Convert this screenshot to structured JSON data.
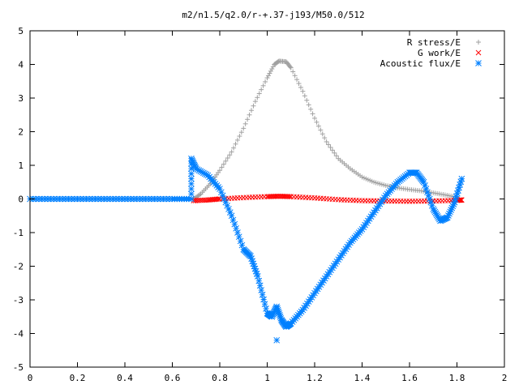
{
  "chart_data": {
    "type": "scatter",
    "title": "m2/n1.5/q2.0/r-+.37-j193/M50.0/512",
    "xlabel": "",
    "ylabel": "",
    "xlim": [
      0,
      2
    ],
    "ylim": [
      -5,
      5
    ],
    "x_ticks": [
      "0",
      "0.2",
      "0.4",
      "0.6",
      "0.8",
      "1",
      "1.2",
      "1.4",
      "1.6",
      "1.8",
      "2"
    ],
    "y_ticks": [
      "5",
      "4",
      "3",
      "2",
      "1",
      "0",
      "-1",
      "-2",
      "-3",
      "-4",
      "-5"
    ],
    "grid": false,
    "legend_position": "top-right",
    "series": [
      {
        "name": "R stress/E",
        "marker": "+",
        "color": "#a0a0a0",
        "points": [
          [
            0.69,
            0.0
          ],
          [
            0.72,
            0.15
          ],
          [
            0.76,
            0.45
          ],
          [
            0.8,
            0.85
          ],
          [
            0.85,
            1.4
          ],
          [
            0.9,
            2.1
          ],
          [
            0.95,
            2.9
          ],
          [
            1.0,
            3.6
          ],
          [
            1.03,
            4.0
          ],
          [
            1.05,
            4.1
          ],
          [
            1.08,
            4.08
          ],
          [
            1.1,
            3.9
          ],
          [
            1.15,
            3.2
          ],
          [
            1.2,
            2.4
          ],
          [
            1.25,
            1.7
          ],
          [
            1.3,
            1.2
          ],
          [
            1.35,
            0.9
          ],
          [
            1.4,
            0.65
          ],
          [
            1.45,
            0.5
          ],
          [
            1.5,
            0.4
          ],
          [
            1.55,
            0.33
          ],
          [
            1.6,
            0.28
          ],
          [
            1.65,
            0.24
          ],
          [
            1.7,
            0.18
          ],
          [
            1.75,
            0.12
          ],
          [
            1.8,
            0.05
          ]
        ]
      },
      {
        "name": "G work/E",
        "marker": "x",
        "color": "#ff0000",
        "points": [
          [
            0.69,
            -0.05
          ],
          [
            0.75,
            -0.03
          ],
          [
            0.8,
            0.0
          ],
          [
            0.9,
            0.04
          ],
          [
            1.0,
            0.07
          ],
          [
            1.05,
            0.08
          ],
          [
            1.1,
            0.07
          ],
          [
            1.2,
            0.03
          ],
          [
            1.3,
            -0.02
          ],
          [
            1.4,
            -0.05
          ],
          [
            1.5,
            -0.06
          ],
          [
            1.6,
            -0.07
          ],
          [
            1.7,
            -0.06
          ],
          [
            1.8,
            -0.04
          ],
          [
            1.82,
            -0.03
          ]
        ]
      },
      {
        "name": "Acoustic flux/E",
        "marker": "*",
        "color": "#0080ff",
        "points": [
          [
            0.0,
            0.0
          ],
          [
            0.1,
            0.0
          ],
          [
            0.2,
            0.0
          ],
          [
            0.3,
            0.0
          ],
          [
            0.4,
            0.0
          ],
          [
            0.5,
            0.0
          ],
          [
            0.6,
            0.0
          ],
          [
            0.68,
            0.0
          ],
          [
            0.68,
            1.2
          ],
          [
            0.7,
            0.9
          ],
          [
            0.75,
            0.7
          ],
          [
            0.8,
            0.3
          ],
          [
            0.85,
            -0.5
          ],
          [
            0.9,
            -1.5
          ],
          [
            0.93,
            -1.7
          ],
          [
            0.96,
            -2.3
          ],
          [
            1.0,
            -3.4
          ],
          [
            1.02,
            -3.5
          ],
          [
            1.04,
            -3.2
          ],
          [
            1.06,
            -3.6
          ],
          [
            1.08,
            -3.8
          ],
          [
            1.1,
            -3.7
          ],
          [
            1.15,
            -3.3
          ],
          [
            1.2,
            -2.8
          ],
          [
            1.25,
            -2.3
          ],
          [
            1.3,
            -1.8
          ],
          [
            1.35,
            -1.3
          ],
          [
            1.4,
            -0.9
          ],
          [
            1.45,
            -0.4
          ],
          [
            1.5,
            0.1
          ],
          [
            1.55,
            0.5
          ],
          [
            1.6,
            0.78
          ],
          [
            1.63,
            0.78
          ],
          [
            1.66,
            0.5
          ],
          [
            1.7,
            -0.3
          ],
          [
            1.73,
            -0.65
          ],
          [
            1.76,
            -0.55
          ],
          [
            1.79,
            -0.1
          ],
          [
            1.82,
            0.6
          ]
        ],
        "extra_points": [
          [
            1.04,
            -4.2
          ]
        ]
      }
    ]
  }
}
